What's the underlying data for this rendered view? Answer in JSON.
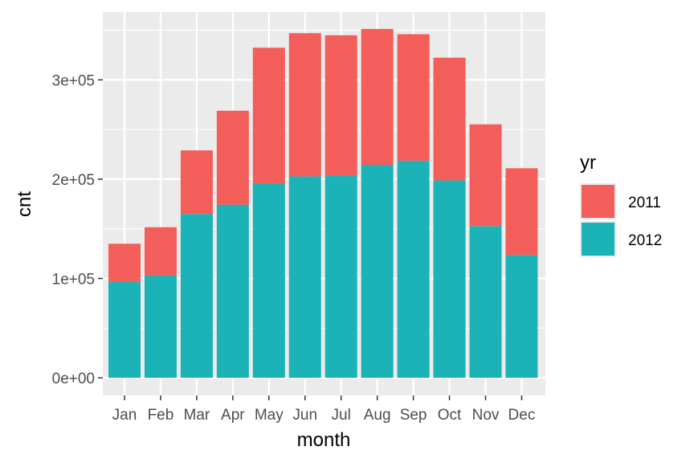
{
  "chart_data": {
    "type": "bar",
    "stacked": true,
    "title": "",
    "xlabel": "month",
    "ylabel": "cnt",
    "categories": [
      "Jan",
      "Feb",
      "Mar",
      "Apr",
      "May",
      "Jun",
      "Jul",
      "Aug",
      "Sep",
      "Oct",
      "Nov",
      "Dec"
    ],
    "series": [
      {
        "name": "2012",
        "color": "#1bb3b8",
        "values": [
          96800,
          103100,
          164900,
          174300,
          195900,
          202800,
          203600,
          214500,
          218600,
          198800,
          152700,
          123700
        ]
      },
      {
        "name": "2011",
        "color": "#f35e5a",
        "values": [
          38200,
          48500,
          64100,
          94600,
          136500,
          144200,
          141300,
          136700,
          127400,
          123500,
          102500,
          87300
        ]
      }
    ],
    "ylim": [
      0,
      360000
    ],
    "y_ticks": [
      0,
      100000,
      200000,
      300000
    ],
    "y_tick_labels": [
      "0e+00",
      "1e+05",
      "2e+05",
      "3e+05"
    ],
    "grid": true,
    "panel_background": "#ebebeb",
    "legend": {
      "title": "yr",
      "placement": "right",
      "entries": [
        {
          "label": "2011",
          "color": "#f35e5a"
        },
        {
          "label": "2012",
          "color": "#1bb3b8"
        }
      ]
    }
  }
}
